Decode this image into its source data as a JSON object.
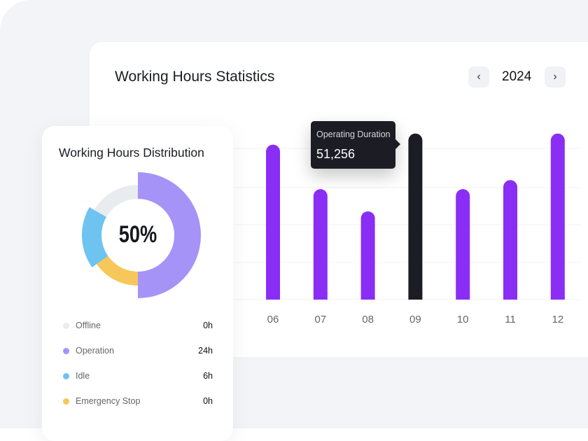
{
  "main": {
    "title": "Working Hours Statistics",
    "year": "2024",
    "prev_icon": "chevron-left-icon",
    "next_icon": "chevron-right-icon"
  },
  "tooltip": {
    "label": "Operating Duration",
    "value": "51,256"
  },
  "chart_data": {
    "type": "bar",
    "title": "Working Hours Statistics",
    "categories": [
      "06",
      "07",
      "08",
      "09",
      "10",
      "11",
      "12"
    ],
    "values": [
      223,
      159,
      127,
      239,
      159,
      172,
      239
    ],
    "ylim": [
      0,
      270
    ],
    "grid": true,
    "highlighted": "09",
    "colors": {
      "bar": "#8a2ef5",
      "highlight": "#1c1d24"
    }
  },
  "distribution": {
    "title": "Working Hours Distribution",
    "center_label": "50%",
    "items": [
      {
        "label": "Offline",
        "value": "0h",
        "color": "#e9ecef",
        "start": 300,
        "end": 360
      },
      {
        "label": "Operation",
        "value": "24h",
        "color": "#a593f7",
        "start": 0,
        "end": 180
      },
      {
        "label": "Idle",
        "value": "6h",
        "color": "#6ec3f0",
        "start": 235,
        "end": 300
      },
      {
        "label": "Emergency Stop",
        "value": "0h",
        "color": "#f7c75a",
        "start": 180,
        "end": 235
      }
    ]
  }
}
